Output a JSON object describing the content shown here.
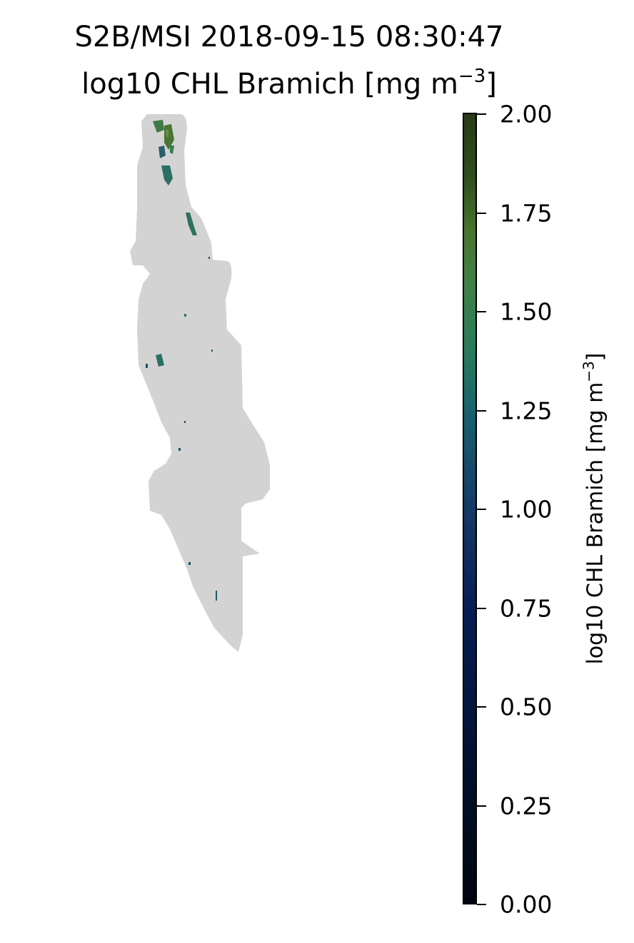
{
  "title": {
    "line1": "S2B/MSI 2018-09-15 08:30:47",
    "line2_prefix": "log10 CHL Bramich [mg m",
    "line2_superscript": "−3",
    "line2_suffix": "]"
  },
  "map": {
    "no_data_color": "#d3d3d3",
    "mask_fill_color": "#d3d3d3"
  },
  "colorbar": {
    "label_prefix": "log10 CHL Bramich [mg m",
    "label_superscript": "−3",
    "label_suffix": "]",
    "range": [
      0.0,
      2.0
    ],
    "ticks": [
      "0.00",
      "0.25",
      "0.50",
      "0.75",
      "1.00",
      "1.25",
      "1.50",
      "1.75",
      "2.00"
    ],
    "colormap_low": "#02050f",
    "colormap_high": "#2a3a17"
  }
}
